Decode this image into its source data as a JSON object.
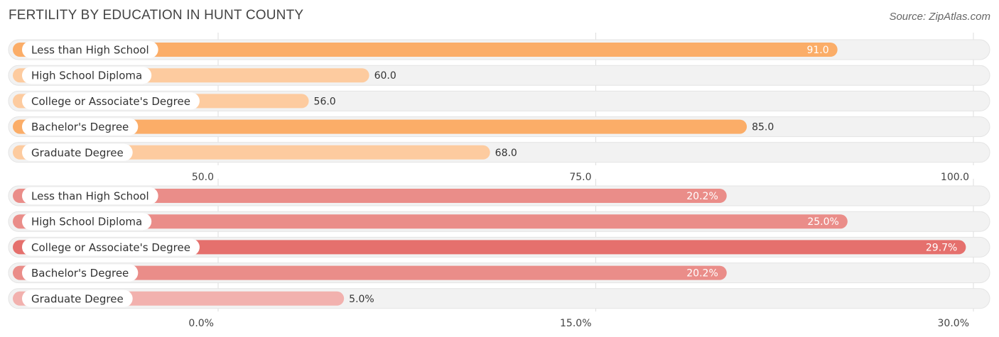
{
  "title": "FERTILITY BY EDUCATION IN HUNT COUNTY",
  "source": "Source: ZipAtlas.com",
  "colors": {
    "orange_strong": "#fbad68",
    "orange_light": "#fdcb9f",
    "red_strong": "#e5706d",
    "red_mid": "#ea8d89",
    "red_light": "#f2b1ae",
    "track": "#f2f2f2"
  },
  "chart_data": [
    {
      "type": "bar",
      "orientation": "horizontal",
      "categories": [
        "Less than High School",
        "High School Diploma",
        "College or Associate's Degree",
        "Bachelor's Degree",
        "Graduate Degree"
      ],
      "values": [
        91.0,
        60.0,
        56.0,
        85.0,
        68.0
      ],
      "value_labels": [
        "91.0",
        "60.0",
        "56.0",
        "85.0",
        "68.0"
      ],
      "xlim": [
        50.0,
        100.0
      ],
      "ticks": [
        50.0,
        75.0,
        100.0
      ],
      "tick_labels": [
        "50.0",
        "75.0",
        "100.0"
      ],
      "grid": true
    },
    {
      "type": "bar",
      "orientation": "horizontal",
      "categories": [
        "Less than High School",
        "High School Diploma",
        "College or Associate's Degree",
        "Bachelor's Degree",
        "Graduate Degree"
      ],
      "values": [
        20.2,
        25.0,
        29.7,
        20.2,
        5.0
      ],
      "value_labels": [
        "20.2%",
        "25.0%",
        "29.7%",
        "20.2%",
        "5.0%"
      ],
      "xlim": [
        0.0,
        30.0
      ],
      "ticks": [
        0.0,
        15.0,
        30.0
      ],
      "tick_labels": [
        "0.0%",
        "15.0%",
        "30.0%"
      ],
      "grid": true
    }
  ]
}
